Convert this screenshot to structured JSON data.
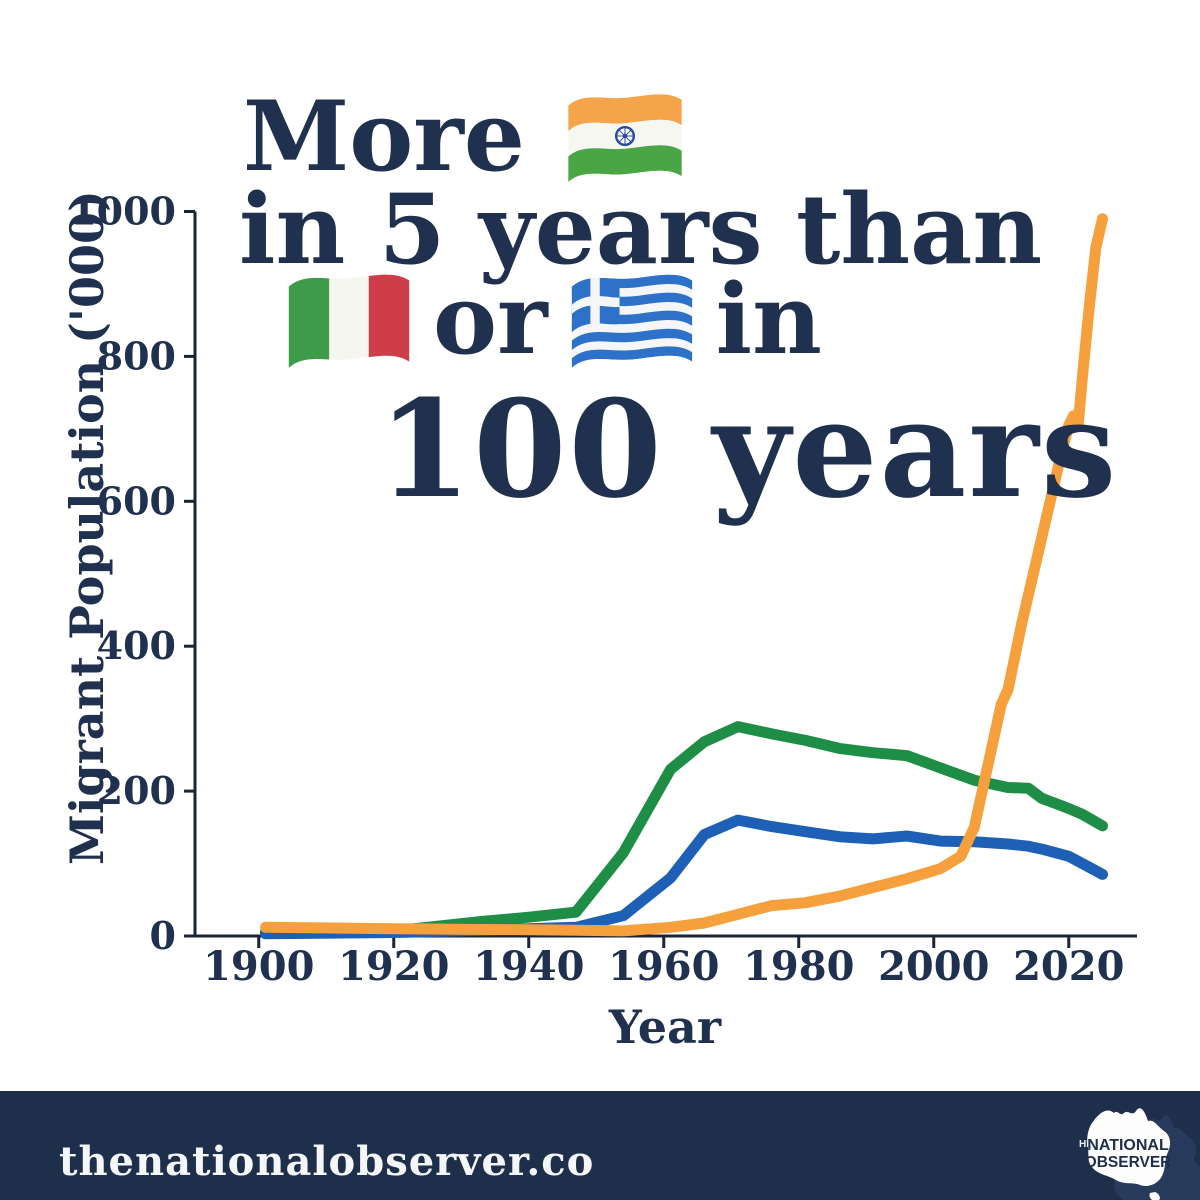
{
  "title": {
    "line1_text": "More",
    "line1_flag": "india-flag",
    "line2_text": "in 5 years than",
    "line3_flag_a": "italy-flag",
    "line3_or": "or",
    "line3_flag_b": "greece-flag",
    "line3_in": "in",
    "line4_text": "100 years"
  },
  "colors": {
    "navy_text": "#20304F",
    "axis": "#1B2434",
    "footer_bg": "#1E2F4B",
    "india_line": "#F5A03C",
    "italy_line": "#1E8E46",
    "greece_line": "#1D60B5"
  },
  "chart_data": {
    "type": "line",
    "title": "More India in 5 years than Italy or Greece in 100 years",
    "xlabel": "Year",
    "ylabel": "Migrant Population ('000)",
    "xlim": [
      1890,
      2031
    ],
    "ylim": [
      0,
      1000
    ],
    "grid": false,
    "legend": "none (series identified by flag emojis in title)",
    "x_ticks": [
      1900,
      1920,
      1940,
      1960,
      1980,
      2000,
      2020
    ],
    "y_ticks": [
      0,
      200,
      400,
      600,
      800,
      1000
    ],
    "series": [
      {
        "name": "Italy",
        "color": "#1E8E46",
        "x": [
          1901,
          1911,
          1921,
          1933,
          1940,
          1947,
          1954,
          1961,
          1966,
          1971,
          1976,
          1981,
          1986,
          1991,
          1996,
          2001,
          2006,
          2011,
          2014,
          2016,
          2018,
          2020,
          2022,
          2025
        ],
        "values": [
          6,
          7,
          8,
          20,
          26,
          33,
          115,
          230,
          268,
          289,
          279,
          270,
          259,
          253,
          249,
          232,
          215,
          205,
          204,
          190,
          183,
          176,
          168,
          152
        ]
      },
      {
        "name": "Greece",
        "color": "#1D60B5",
        "x": [
          1901,
          1911,
          1921,
          1933,
          1940,
          1947,
          1954,
          1961,
          1966,
          1971,
          1976,
          1981,
          1986,
          1991,
          1996,
          2001,
          2006,
          2011,
          2014,
          2016,
          2018,
          2020,
          2022,
          2025
        ],
        "values": [
          3,
          4,
          5,
          8,
          10,
          12,
          28,
          80,
          140,
          160,
          151,
          144,
          137,
          134,
          138,
          131,
          130,
          127,
          124,
          120,
          115,
          110,
          100,
          85
        ]
      },
      {
        "name": "India",
        "color": "#F5A03C",
        "x": [
          1901,
          1911,
          1921,
          1933,
          1940,
          1947,
          1954,
          1961,
          1966,
          1971,
          1976,
          1981,
          1986,
          1991,
          1996,
          2001,
          2004,
          2006,
          2008,
          2010,
          2011,
          2013,
          2015,
          2017,
          2019,
          2020,
          2020.7,
          2021.4,
          2022,
          2023,
          2024,
          2025
        ],
        "values": [
          12,
          11,
          10,
          9,
          8.5,
          8,
          7,
          12,
          18,
          30,
          42,
          46,
          55,
          67,
          79,
          93,
          110,
          150,
          235,
          320,
          340,
          430,
          510,
          590,
          670,
          705,
          718,
          706,
          770,
          865,
          950,
          990
        ]
      }
    ]
  },
  "footer": {
    "site": "thenationalobserver.co",
    "logo": {
      "prefix": "HE",
      "word1": "NATIONAL",
      "word2": "OBSERVER"
    }
  }
}
